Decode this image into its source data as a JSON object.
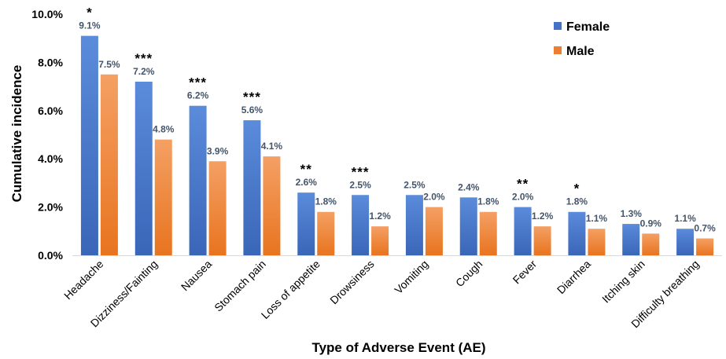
{
  "chart_data": {
    "type": "bar",
    "xlabel": "Type of Adverse Event (AE)",
    "ylabel": "Cumulative incidence",
    "ylim": [
      0,
      10
    ],
    "yticks": [
      0,
      2,
      4,
      6,
      8,
      10
    ],
    "ytick_labels": [
      "0.0%",
      "2.0%",
      "4.0%",
      "6.0%",
      "8.0%",
      "10.0%"
    ],
    "grid": false,
    "legend_position": "top-right",
    "categories": [
      "Headache",
      "Dizziness/Fainting",
      "Nausea",
      "Stomach pain",
      "Loss of appetite",
      "Drowsiness",
      "Vomiting",
      "Cough",
      "Fever",
      "Diarrhea",
      "Itching skin",
      "Difficulty breathing"
    ],
    "series": [
      {
        "name": "Female",
        "color": "#4472C4",
        "values": [
          9.1,
          7.2,
          6.2,
          5.6,
          2.6,
          2.5,
          2.5,
          2.4,
          2.0,
          1.8,
          1.3,
          1.1
        ],
        "labels": [
          "9.1%",
          "7.2%",
          "6.2%",
          "5.6%",
          "2.6%",
          "2.5%",
          "2.5%",
          "2.4%",
          "2.0%",
          "1.8%",
          "1.3%",
          "1.1%"
        ]
      },
      {
        "name": "Male",
        "color": "#ED7D31",
        "values": [
          7.5,
          4.8,
          3.9,
          4.1,
          1.8,
          1.2,
          2.0,
          1.8,
          1.2,
          1.1,
          0.9,
          0.7
        ],
        "labels": [
          "7.5%",
          "4.8%",
          "3.9%",
          "4.1%",
          "1.8%",
          "1.2%",
          "2.0%",
          "1.8%",
          "1.2%",
          "1.1%",
          "0.9%",
          "0.7%"
        ]
      }
    ],
    "significance": [
      "*",
      "***",
      "***",
      "***",
      "**",
      "***",
      "",
      "",
      "**",
      "*",
      "",
      ""
    ],
    "data_label_color": "#44546A"
  }
}
